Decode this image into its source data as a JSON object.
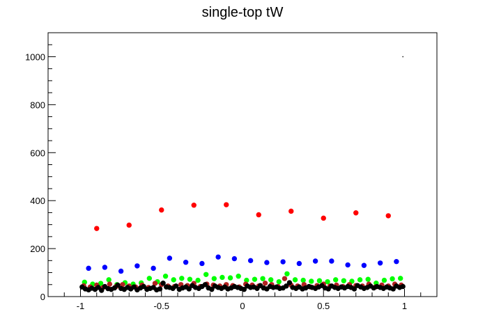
{
  "chart_data": {
    "type": "scatter",
    "title": "single-top tW",
    "xlabel": "",
    "ylabel": "",
    "xlim": [
      -1.2,
      1.2
    ],
    "ylim": [
      0,
      1100
    ],
    "grid": false,
    "x_ticks": [
      -1,
      -0.5,
      0,
      0.5,
      1
    ],
    "x_tick_labels": [
      "-1",
      "-0.5",
      "0",
      "0.5",
      "1"
    ],
    "y_ticks": [
      0,
      200,
      400,
      600,
      800,
      1000
    ],
    "y_tick_labels": [
      "0",
      "200",
      "400",
      "600",
      "800",
      "1000"
    ],
    "series": [
      {
        "color": "#ff0000",
        "x": [
          -0.9,
          -0.7,
          -0.5,
          -0.3,
          -0.1,
          0.1,
          0.3,
          0.5,
          0.7,
          0.9
        ],
        "y": [
          284,
          298,
          361,
          381,
          383,
          341,
          356,
          327,
          349,
          337
        ]
      },
      {
        "color": "#0000ff",
        "x": [
          -0.95,
          -0.85,
          -0.75,
          -0.65,
          -0.55,
          -0.45,
          -0.35,
          -0.25,
          -0.15,
          -0.05,
          0.05,
          0.15,
          0.25,
          0.35,
          0.45,
          0.55,
          0.65,
          0.75,
          0.85,
          0.95
        ],
        "y": [
          118,
          122,
          106,
          128,
          118,
          160,
          143,
          138,
          165,
          158,
          150,
          142,
          145,
          138,
          148,
          148,
          132,
          130,
          140,
          146
        ]
      },
      {
        "color": "#00ff00",
        "x": [
          -0.975,
          -0.925,
          -0.875,
          -0.825,
          -0.775,
          -0.725,
          -0.675,
          -0.625,
          -0.575,
          -0.525,
          -0.475,
          -0.425,
          -0.375,
          -0.325,
          -0.275,
          -0.225,
          -0.175,
          -0.125,
          -0.075,
          -0.025,
          0.025,
          0.075,
          0.125,
          0.175,
          0.225,
          0.275,
          0.325,
          0.375,
          0.425,
          0.475,
          0.525,
          0.575,
          0.625,
          0.675,
          0.725,
          0.775,
          0.825,
          0.875,
          0.925,
          0.975
        ],
        "y": [
          60,
          52,
          55,
          70,
          50,
          58,
          52,
          57,
          76,
          62,
          85,
          70,
          76,
          72,
          68,
          92,
          75,
          80,
          78,
          85,
          68,
          72,
          75,
          70,
          62,
          95,
          70,
          68,
          64,
          66,
          62,
          70,
          66,
          64,
          70,
          72,
          56,
          68,
          74,
          76
        ]
      },
      {
        "color": "#b22222",
        "x": [
          -0.98,
          -0.94,
          -0.9,
          -0.86,
          -0.82,
          -0.78,
          -0.74,
          -0.7,
          -0.66,
          -0.62,
          -0.58,
          -0.54,
          -0.5,
          -0.46,
          -0.42,
          -0.38,
          -0.34,
          -0.3,
          -0.26,
          -0.22,
          -0.18,
          -0.14,
          -0.1,
          -0.06,
          -0.02,
          0.02,
          0.06,
          0.1,
          0.14,
          0.18,
          0.22,
          0.26,
          0.3,
          0.34,
          0.38,
          0.42,
          0.46,
          0.5,
          0.54,
          0.58,
          0.62,
          0.66,
          0.7,
          0.74,
          0.78,
          0.82,
          0.86,
          0.9,
          0.94,
          0.98
        ],
        "y": [
          45,
          40,
          48,
          38,
          52,
          42,
          50,
          44,
          40,
          48,
          38,
          55,
          50,
          44,
          42,
          50,
          46,
          55,
          42,
          52,
          48,
          44,
          50,
          46,
          40,
          52,
          48,
          44,
          56,
          50,
          42,
          75,
          48,
          44,
          50,
          40,
          46,
          52,
          44,
          48,
          42,
          50,
          46,
          44,
          52,
          40,
          48,
          44,
          52,
          48
        ]
      },
      {
        "color": "#000000",
        "x": [
          -0.99,
          -0.97,
          -0.95,
          -0.93,
          -0.91,
          -0.89,
          -0.87,
          -0.85,
          -0.83,
          -0.81,
          -0.79,
          -0.77,
          -0.75,
          -0.73,
          -0.71,
          -0.69,
          -0.67,
          -0.65,
          -0.63,
          -0.61,
          -0.59,
          -0.57,
          -0.55,
          -0.53,
          -0.51,
          -0.49,
          -0.47,
          -0.45,
          -0.43,
          -0.41,
          -0.39,
          -0.37,
          -0.35,
          -0.33,
          -0.31,
          -0.29,
          -0.27,
          -0.25,
          -0.23,
          -0.21,
          -0.19,
          -0.17,
          -0.15,
          -0.13,
          -0.11,
          -0.09,
          -0.07,
          -0.05,
          -0.03,
          -0.01,
          0.01,
          0.03,
          0.05,
          0.07,
          0.09,
          0.11,
          0.13,
          0.15,
          0.17,
          0.19,
          0.21,
          0.23,
          0.25,
          0.27,
          0.29,
          0.31,
          0.33,
          0.35,
          0.37,
          0.39,
          0.41,
          0.43,
          0.45,
          0.47,
          0.49,
          0.51,
          0.53,
          0.55,
          0.57,
          0.59,
          0.61,
          0.63,
          0.65,
          0.67,
          0.69,
          0.71,
          0.73,
          0.75,
          0.77,
          0.79,
          0.81,
          0.83,
          0.85,
          0.87,
          0.89,
          0.91,
          0.93,
          0.95,
          0.97,
          0.99
        ],
        "y": [
          40,
          32,
          28,
          35,
          30,
          38,
          26,
          42,
          33,
          30,
          36,
          48,
          34,
          30,
          38,
          32,
          40,
          28,
          36,
          42,
          30,
          34,
          38,
          28,
          32,
          56,
          40,
          38,
          34,
          44,
          30,
          36,
          40,
          32,
          46,
          38,
          34,
          42,
          50,
          36,
          30,
          44,
          38,
          34,
          40,
          32,
          36,
          42,
          38,
          34,
          30,
          44,
          38,
          40,
          34,
          46,
          36,
          32,
          42,
          38,
          40,
          34,
          36,
          44,
          58,
          38,
          34,
          40,
          32,
          36,
          42,
          38,
          34,
          40,
          46,
          36,
          32,
          44,
          38,
          34,
          40,
          36,
          42,
          38,
          32,
          46,
          40,
          34,
          38,
          44,
          36,
          42,
          38,
          34,
          40,
          36,
          32,
          44,
          38,
          42
        ]
      }
    ],
    "annotations": [
      {
        "color": "#000000",
        "x": [
          0.99
        ],
        "y": [
          1000
        ]
      }
    ]
  }
}
